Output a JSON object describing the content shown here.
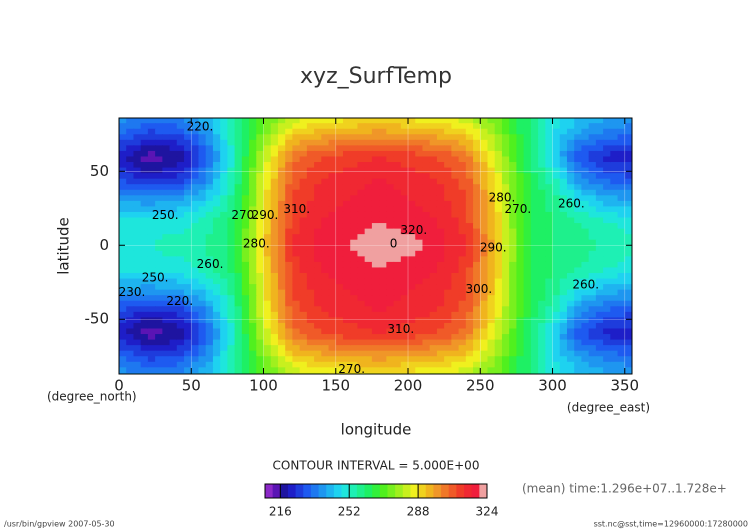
{
  "chart_data": {
    "type": "contour",
    "title": "xyz_SurfTemp",
    "x_label": "longitude",
    "y_label": "latitude",
    "x_unit": "(degree_east)",
    "y_unit": "(degree_north)",
    "contour_interval": "CONTOUR INTERVAL = 5.000E+00",
    "time_note": "(mean) time:1.296e+07..1.728e+",
    "footer_left": "/usr/bin/gpview  2007-05-30",
    "footer_right": "sst.nc@sst,time=12960000:17280000",
    "xlim": [
      0,
      355
    ],
    "ylim": [
      -87,
      86
    ],
    "xticks": [
      0,
      50,
      100,
      150,
      200,
      250,
      300,
      350
    ],
    "yticks": [
      -50,
      0,
      50
    ],
    "x": [
      0,
      20,
      40,
      60,
      80,
      100,
      120,
      140,
      160,
      180,
      200,
      220,
      240,
      260,
      280,
      300,
      320,
      340,
      360
    ],
    "y": [
      90,
      75,
      60,
      45,
      30,
      15,
      0,
      -15,
      -30,
      -45,
      -60,
      -75,
      -90
    ],
    "z": [
      [
        240,
        238,
        238,
        244,
        258,
        270,
        278,
        282,
        284,
        286,
        284,
        282,
        278,
        272,
        262,
        252,
        246,
        242,
        240
      ],
      [
        232,
        226,
        228,
        236,
        256,
        274,
        290,
        294,
        296,
        298,
        296,
        294,
        290,
        278,
        262,
        248,
        238,
        234,
        232
      ],
      [
        222,
        214,
        216,
        230,
        254,
        280,
        302,
        308,
        310,
        312,
        310,
        308,
        302,
        284,
        264,
        246,
        228,
        222,
        222
      ],
      [
        228,
        222,
        224,
        236,
        256,
        284,
        306,
        312,
        314,
        316,
        314,
        312,
        306,
        288,
        266,
        254,
        236,
        230,
        228
      ],
      [
        240,
        238,
        240,
        246,
        258,
        286,
        308,
        314,
        316,
        318,
        316,
        314,
        308,
        290,
        266,
        258,
        248,
        242,
        240
      ],
      [
        250,
        250,
        250,
        254,
        262,
        288,
        310,
        316,
        318,
        320,
        318,
        316,
        310,
        292,
        266,
        260,
        256,
        252,
        250
      ],
      [
        252,
        252,
        254,
        256,
        262,
        290,
        312,
        318,
        320,
        324,
        322,
        318,
        312,
        294,
        266,
        260,
        258,
        254,
        252
      ],
      [
        250,
        250,
        250,
        254,
        262,
        288,
        310,
        316,
        318,
        320,
        318,
        316,
        310,
        292,
        266,
        260,
        256,
        252,
        250
      ],
      [
        240,
        238,
        240,
        246,
        258,
        286,
        308,
        314,
        316,
        318,
        316,
        314,
        308,
        290,
        266,
        258,
        248,
        242,
        240
      ],
      [
        228,
        222,
        224,
        236,
        256,
        284,
        306,
        312,
        314,
        316,
        314,
        312,
        306,
        288,
        266,
        254,
        236,
        230,
        228
      ],
      [
        222,
        214,
        216,
        230,
        254,
        280,
        302,
        308,
        310,
        312,
        310,
        308,
        302,
        284,
        264,
        246,
        228,
        222,
        222
      ],
      [
        232,
        226,
        228,
        236,
        256,
        274,
        290,
        294,
        296,
        298,
        296,
        294,
        290,
        278,
        262,
        248,
        238,
        234,
        232
      ],
      [
        240,
        238,
        238,
        244,
        258,
        270,
        278,
        282,
        284,
        286,
        284,
        282,
        278,
        272,
        262,
        252,
        246,
        242,
        240
      ]
    ],
    "levels": [
      208,
      212,
      216,
      220,
      224,
      228,
      232,
      236,
      240,
      244,
      248,
      252,
      256,
      260,
      264,
      268,
      272,
      276,
      280,
      284,
      288,
      292,
      296,
      300,
      304,
      308,
      312,
      316,
      320,
      324
    ],
    "colors": [
      "#8c28c8",
      "#5a14b4",
      "#1e14a0",
      "#1e1ec8",
      "#1e3cdc",
      "#1e5af0",
      "#1e78f0",
      "#1e96f0",
      "#1eb4f0",
      "#1ed2f0",
      "#1ee6dc",
      "#1ef0b4",
      "#1ef08c",
      "#1ef064",
      "#32f03c",
      "#50f01e",
      "#78f01e",
      "#a0f01e",
      "#c8f01e",
      "#f0f01e",
      "#f0d21e",
      "#f0b41e",
      "#f09628",
      "#f07828",
      "#f05a28",
      "#f03c28",
      "#f02832",
      "#f01e3c",
      "#f0a0a0"
    ],
    "colorbar_ticks": [
      216,
      252,
      288,
      324
    ],
    "contour_labels": [
      {
        "label": "220.",
        "value": 220,
        "x": 56,
        "y": 80
      },
      {
        "label": "250.",
        "value": 250,
        "x": 32,
        "y": 20
      },
      {
        "label": "260.",
        "value": 260,
        "x": 63,
        "y": -13
      },
      {
        "label": "250.",
        "value": 250,
        "x": 25,
        "y": -22
      },
      {
        "label": "230.",
        "value": 230,
        "x": 9,
        "y": -32
      },
      {
        "label": "220.",
        "value": 220,
        "x": 42,
        "y": -38
      },
      {
        "label": "270.",
        "value": 270,
        "x": 87,
        "y": 20
      },
      {
        "label": "280.",
        "value": 280,
        "x": 95,
        "y": 1
      },
      {
        "label": "290.",
        "value": 290,
        "x": 101,
        "y": 20
      },
      {
        "label": "310.",
        "value": 310,
        "x": 123,
        "y": 24
      },
      {
        "label": "0",
        "value": 0,
        "x": 190,
        "y": 1
      },
      {
        "label": "320.",
        "value": 320,
        "x": 204,
        "y": 10
      },
      {
        "label": "310.",
        "value": 310,
        "x": 195,
        "y": -57
      },
      {
        "label": "300.",
        "value": 300,
        "x": 249,
        "y": -30
      },
      {
        "label": "290.",
        "value": 290,
        "x": 259,
        "y": -2
      },
      {
        "label": "280.",
        "value": 280,
        "x": 265,
        "y": 32
      },
      {
        "label": "270.",
        "value": 270,
        "x": 276,
        "y": 24
      },
      {
        "label": "260.",
        "value": 260,
        "x": 313,
        "y": 28
      },
      {
        "label": "260.",
        "value": 260,
        "x": 323,
        "y": -27
      },
      {
        "label": "270.",
        "value": 270,
        "x": 161,
        "y": -84
      }
    ]
  }
}
